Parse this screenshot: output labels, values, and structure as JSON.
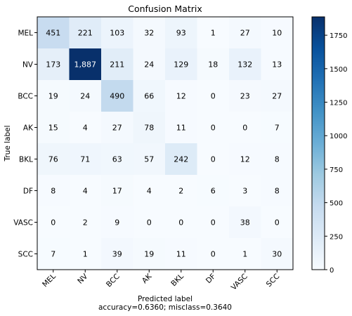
{
  "chart_data": {
    "type": "heatmap",
    "title": "Confusion Matrix",
    "xlabel": "Predicted label",
    "xlabel_sub": "accuracy=0.6360; misclass=0.3640",
    "ylabel": "True label",
    "x_categories": [
      "MEL",
      "NV",
      "BCC",
      "AK",
      "BKL",
      "DF",
      "VASC",
      "SCC"
    ],
    "y_categories": [
      "MEL",
      "NV",
      "BCC",
      "AK",
      "BKL",
      "DF",
      "VASC",
      "SCC"
    ],
    "values": [
      [
        451,
        221,
        103,
        32,
        93,
        1,
        27,
        10
      ],
      [
        173,
        1887,
        211,
        24,
        129,
        18,
        132,
        13
      ],
      [
        19,
        24,
        490,
        66,
        12,
        0,
        23,
        27
      ],
      [
        15,
        4,
        27,
        78,
        11,
        0,
        0,
        7
      ],
      [
        76,
        71,
        63,
        57,
        242,
        0,
        12,
        8
      ],
      [
        8,
        4,
        17,
        4,
        2,
        6,
        3,
        8
      ],
      [
        0,
        2,
        9,
        0,
        0,
        0,
        38,
        0
      ],
      [
        7,
        1,
        39,
        19,
        11,
        0,
        1,
        30
      ]
    ],
    "cell_labels": [
      [
        "451",
        "221",
        "103",
        "32",
        "93",
        "1",
        "27",
        "10"
      ],
      [
        "173",
        "1,887",
        "211",
        "24",
        "129",
        "18",
        "132",
        "13"
      ],
      [
        "19",
        "24",
        "490",
        "66",
        "12",
        "0",
        "23",
        "27"
      ],
      [
        "15",
        "4",
        "27",
        "78",
        "11",
        "0",
        "0",
        "7"
      ],
      [
        "76",
        "71",
        "63",
        "57",
        "242",
        "0",
        "12",
        "8"
      ],
      [
        "8",
        "4",
        "17",
        "4",
        "2",
        "6",
        "3",
        "8"
      ],
      [
        "0",
        "2",
        "9",
        "0",
        "0",
        "0",
        "38",
        "0"
      ],
      [
        "7",
        "1",
        "39",
        "19",
        "11",
        "0",
        "1",
        "30"
      ]
    ],
    "colormap": "Blues",
    "colorbar": {
      "range": [
        0,
        1887
      ],
      "ticks": [
        0,
        250,
        500,
        750,
        1000,
        1250,
        1500,
        1750
      ]
    },
    "grid": false
  }
}
